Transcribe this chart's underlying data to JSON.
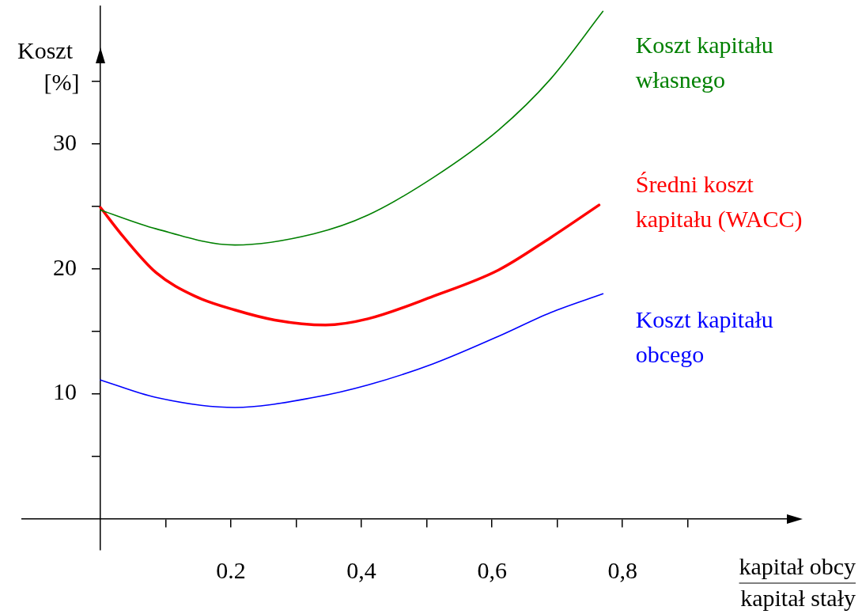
{
  "chart_data": {
    "type": "line",
    "xlabel": "kapitał obcy\nkapitał stały",
    "ylabel": "Koszt [%]",
    "xlim": [
      -0.12,
      1.07
    ],
    "ylim": [
      -2.5,
      41
    ],
    "xticks": [
      {
        "value": 0.1,
        "label": null
      },
      {
        "value": 0.2,
        "label": "0.2"
      },
      {
        "value": 0.3,
        "label": null
      },
      {
        "value": 0.4,
        "label": "0,4"
      },
      {
        "value": 0.5,
        "label": null
      },
      {
        "value": 0.6,
        "label": "0,6"
      },
      {
        "value": 0.7,
        "label": null
      },
      {
        "value": 0.8,
        "label": "0,8"
      },
      {
        "value": 0.9,
        "label": null
      }
    ],
    "yticks": [
      {
        "value": 5,
        "label": null
      },
      10,
      {
        "value": 15,
        "label": null
      },
      20,
      {
        "value": 25,
        "label": null
      },
      30,
      {
        "value": 35,
        "label": null
      }
    ],
    "grid": false,
    "legend": false,
    "marker": "none",
    "line_style": "solid",
    "series": [
      {
        "name": "Koszt kapitału własnego",
        "color": "#008000",
        "x": [
          0,
          0.085,
          0.206,
          0.327,
          0.41,
          0.51,
          0.61,
          0.69,
          0.77
        ],
        "values": [
          24.7,
          23.2,
          21.9,
          22.8,
          24.3,
          27.3,
          31.1,
          35.2,
          40.6
        ]
      },
      {
        "name": "Średni koszt kapitału (WACC)",
        "color": "#ff0000",
        "x": [
          0,
          0.036,
          0.085,
          0.145,
          0.206,
          0.267,
          0.345,
          0.41,
          0.51,
          0.61,
          0.69,
          0.764
        ],
        "values": [
          24.9,
          22.5,
          19.7,
          17.8,
          16.7,
          15.9,
          15.5,
          16.0,
          17.8,
          19.9,
          22.5,
          25.1
        ]
      },
      {
        "name": "Koszt kapitału obcego",
        "color": "#0000ff",
        "x": [
          0,
          0.085,
          0.206,
          0.327,
          0.41,
          0.51,
          0.61,
          0.69,
          0.77
        ],
        "values": [
          11.1,
          9.7,
          8.9,
          9.7,
          10.7,
          12.4,
          14.6,
          16.5,
          18.0
        ]
      }
    ]
  }
}
